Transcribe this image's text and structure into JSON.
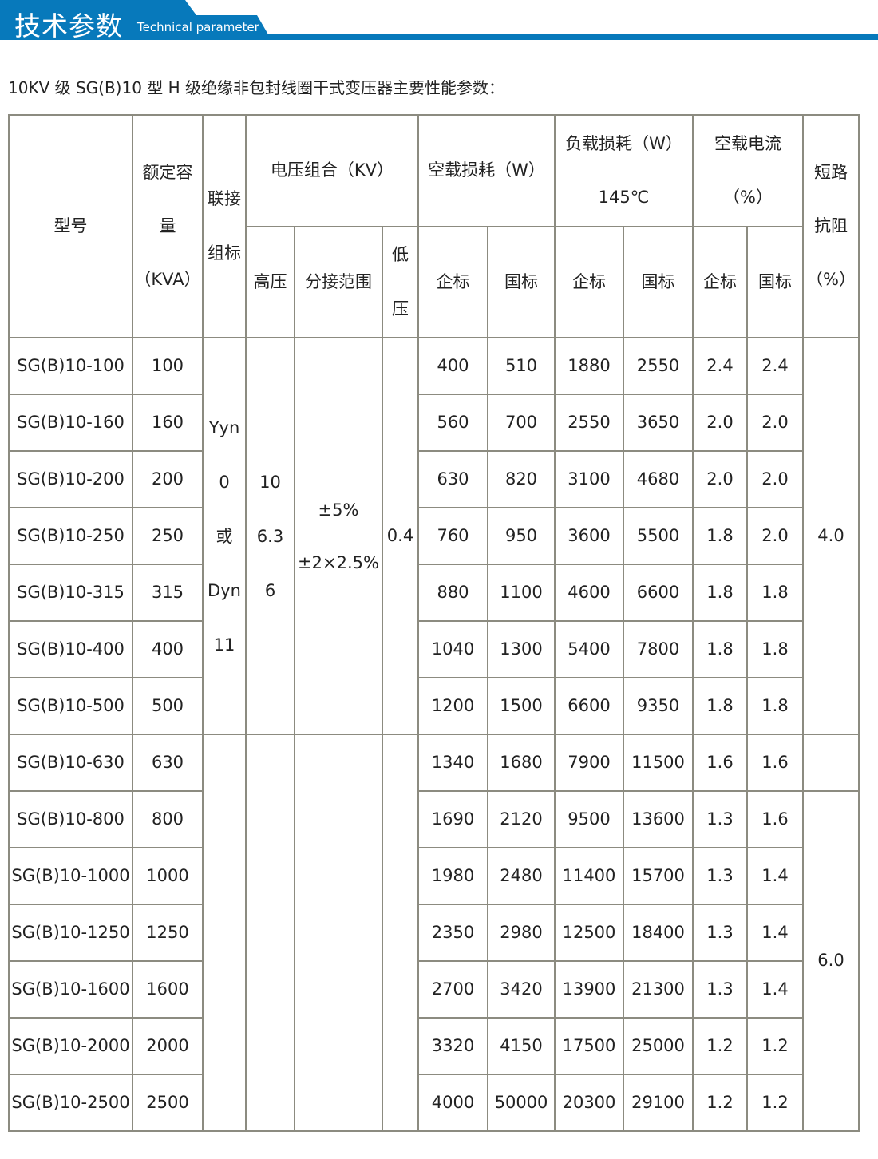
{
  "banner": {
    "title": "技术参数",
    "subtitle": "Technical parameter",
    "accent": "#0779bb"
  },
  "intro": "10KV 级 SG(B)10 型 H 级绝缘非包封线圈干式变压器主要性能参数：",
  "headers": {
    "model": "型号",
    "capacity_1": "额定容",
    "capacity_2": "量",
    "capacity_3": "（KVA）",
    "connection_1": "联接",
    "connection_2": "组标",
    "voltage": "电压组合（KV）",
    "hv": "高压",
    "tap": "分接范围",
    "lv_1": "低",
    "lv_2": "压",
    "noload_loss": "空载损耗（W）",
    "load_loss_1": "负载损耗（W）",
    "load_loss_2": "145℃",
    "noload_current_1": "空载电流",
    "noload_current_2": "（%）",
    "impedance_1": "短路",
    "impedance_2": "抗阻",
    "impedance_3": "（%）",
    "ent": "企标",
    "nat": "国标"
  },
  "group1": {
    "connection": [
      "Yyn",
      "0",
      "或",
      "Dyn",
      "11"
    ],
    "hv": [
      "10",
      "6.3",
      "6"
    ],
    "tap": [
      "±5%",
      "±2×2.5%"
    ],
    "lv": "0.4",
    "impedance": "4.0"
  },
  "group2": {
    "impedance": "6.0"
  },
  "rows": [
    [
      "SG(B)10-100",
      "100",
      "400",
      "510",
      "1880",
      "2550",
      "2.4",
      "2.4"
    ],
    [
      "SG(B)10-160",
      "160",
      "560",
      "700",
      "2550",
      "3650",
      "2.0",
      "2.0"
    ],
    [
      "SG(B)10-200",
      "200",
      "630",
      "820",
      "3100",
      "4680",
      "2.0",
      "2.0"
    ],
    [
      "SG(B)10-250",
      "250",
      "760",
      "950",
      "3600",
      "5500",
      "1.8",
      "2.0"
    ],
    [
      "SG(B)10-315",
      "315",
      "880",
      "1100",
      "4600",
      "6600",
      "1.8",
      "1.8"
    ],
    [
      "SG(B)10-400",
      "400",
      "1040",
      "1300",
      "5400",
      "7800",
      "1.8",
      "1.8"
    ],
    [
      "SG(B)10-500",
      "500",
      "1200",
      "1500",
      "6600",
      "9350",
      "1.8",
      "1.8"
    ],
    [
      "SG(B)10-630",
      "630",
      "1340",
      "1680",
      "7900",
      "11500",
      "1.6",
      "1.6"
    ],
    [
      "SG(B)10-800",
      "800",
      "1690",
      "2120",
      "9500",
      "13600",
      "1.3",
      "1.6"
    ],
    [
      "SG(B)10-1000",
      "1000",
      "1980",
      "2480",
      "11400",
      "15700",
      "1.3",
      "1.4"
    ],
    [
      "SG(B)10-1250",
      "1250",
      "2350",
      "2980",
      "12500",
      "18400",
      "1.3",
      "1.4"
    ],
    [
      "SG(B)10-1600",
      "1600",
      "2700",
      "3420",
      "13900",
      "21300",
      "1.3",
      "1.4"
    ],
    [
      "SG(B)10-2000",
      "2000",
      "3320",
      "4150",
      "17500",
      "25000",
      "1.2",
      "1.2"
    ],
    [
      "SG(B)10-2500",
      "2500",
      "4000",
      "50000",
      "20300",
      "29100",
      "1.2",
      "1.2"
    ]
  ]
}
